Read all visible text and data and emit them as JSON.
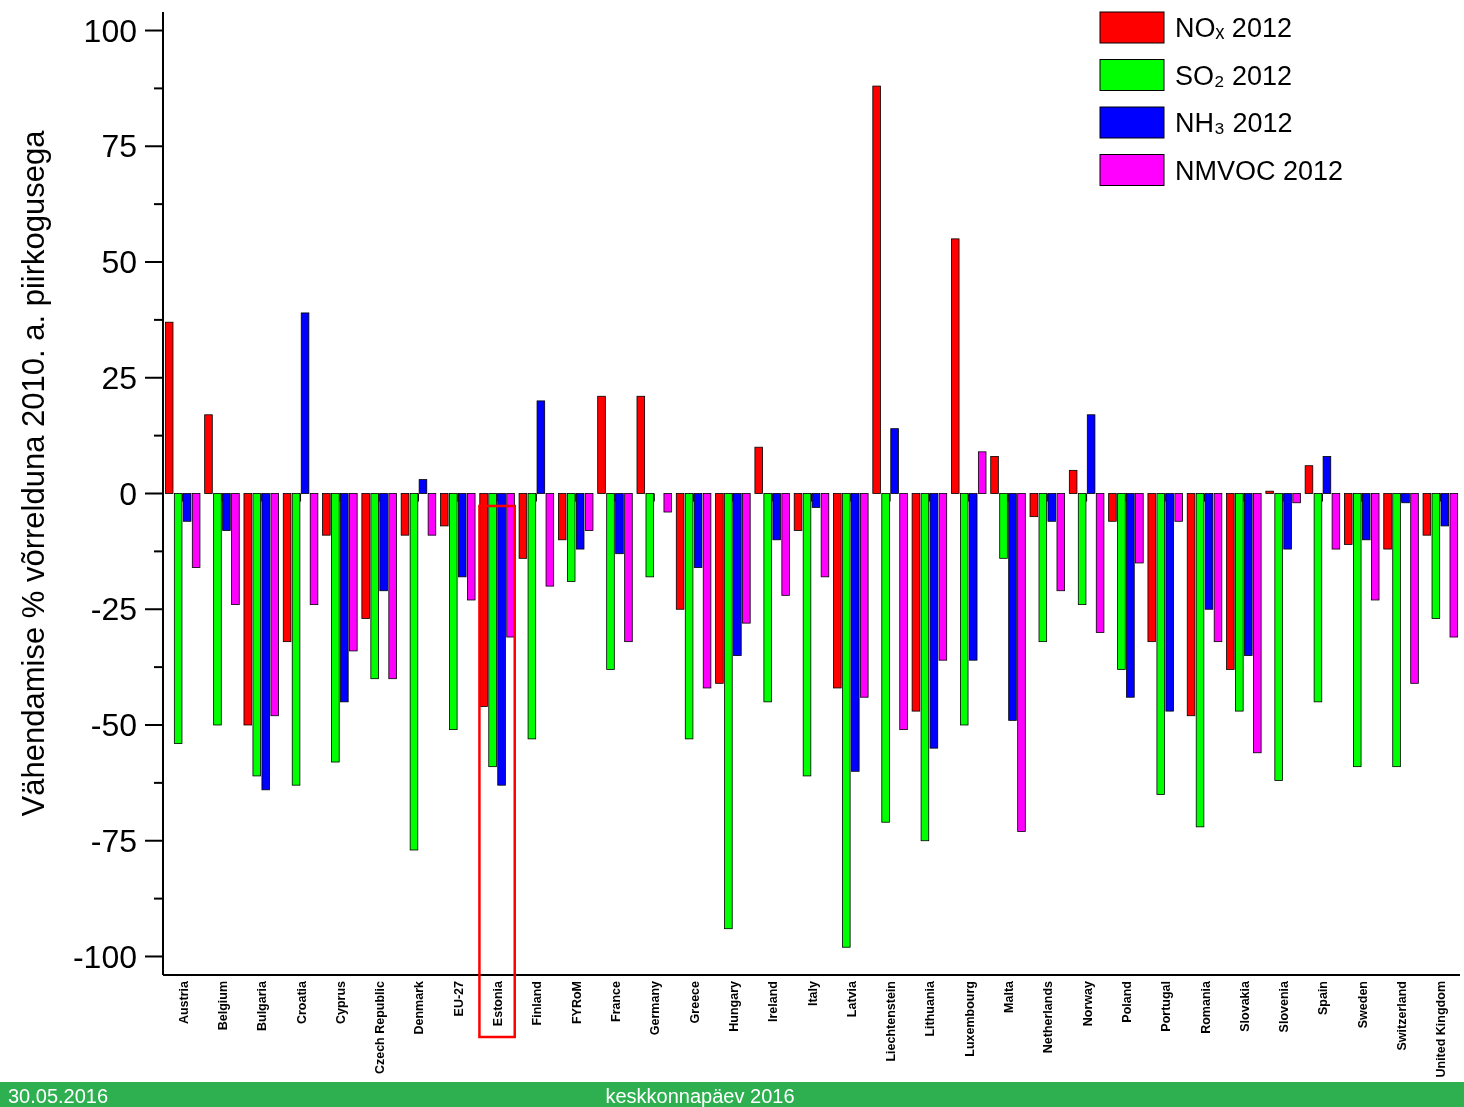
{
  "chart_data": {
    "type": "bar",
    "ylabel": "Vähendamise % võrrelduna 2010. a. piirkogusega",
    "categories": [
      "Austria",
      "Belgium",
      "Bulgaria",
      "Croatia",
      "Cyprus",
      "Czech Republic",
      "Denmark",
      "EU-27",
      "Estonia",
      "Finland",
      "FYRoM",
      "France",
      "Germany",
      "Greece",
      "Hungary",
      "Ireland",
      "Italy",
      "Latvia",
      "Liechtenstein",
      "Lithuania",
      "Luxembourg",
      "Malta",
      "Netherlands",
      "Norway",
      "Poland",
      "Portugal",
      "Romania",
      "Slovakia",
      "Slovenia",
      "Spain",
      "Sweden",
      "Switzerland",
      "United Kingdom"
    ],
    "series": [
      {
        "name": "NOₓ 2012",
        "color": "#ff0000",
        "values": [
          37,
          17,
          -50,
          -32,
          -9,
          -27,
          -9,
          -7,
          -46,
          -14,
          -10,
          21,
          21,
          -25,
          -41,
          10,
          -8,
          -42,
          88,
          -47,
          55,
          8,
          -5,
          5,
          -6,
          -32,
          -48,
          -38,
          0.5,
          6,
          -11,
          -12,
          -9
        ]
      },
      {
        "name": "SO₂ 2012",
        "color": "#00ff00",
        "values": [
          -54,
          -50,
          -61,
          -63,
          -58,
          -40,
          -77,
          -51,
          -59,
          -53,
          -19,
          -38,
          -18,
          -53,
          -94,
          -45,
          -61,
          -98,
          -71,
          -75,
          -50,
          -14,
          -32,
          -24,
          -38,
          -65,
          -72,
          -47,
          -62,
          -45,
          -59,
          -59,
          -27
        ]
      },
      {
        "name": "NH₃ 2012",
        "color": "#0000ff",
        "values": [
          -6,
          -8,
          -64,
          39,
          -45,
          -21,
          3,
          -18,
          -63,
          20,
          -12,
          -13,
          0,
          -16,
          -35,
          -10,
          -3,
          -60,
          14,
          -55,
          -36,
          -49,
          -6,
          17,
          -44,
          -47,
          -25,
          -35,
          -12,
          8,
          -10,
          -2,
          -7
        ]
      },
      {
        "name": "NMVOC 2012",
        "color": "#ff00ff",
        "values": [
          -16,
          -24,
          -48,
          -24,
          -34,
          -40,
          -9,
          -23,
          -31,
          -20,
          -8,
          -32,
          -4,
          -42,
          -28,
          -22,
          -18,
          -44,
          -51,
          -36,
          9,
          -73,
          -21,
          -30,
          -15,
          -6,
          -32,
          -56,
          -2,
          -12,
          -23,
          -41,
          -31
        ]
      }
    ],
    "ylim": [
      -104,
      104
    ],
    "yticks": [
      -100,
      {
        "value": -87.5,
        "label": null
      },
      -75,
      {
        "value": -62.5,
        "label": null
      },
      -50,
      {
        "value": -37.5,
        "label": null
      },
      -25,
      {
        "value": -12.5,
        "label": null
      },
      0,
      {
        "value": 12.5,
        "label": null
      },
      25,
      {
        "value": 37.5,
        "label": null
      },
      50,
      {
        "value": 62.5,
        "label": null
      },
      75,
      {
        "value": 87.5,
        "label": null
      },
      100
    ],
    "legend": "top right",
    "annotations": [
      "30.05.2016",
      "keskkonnapäev 2016"
    ]
  }
}
